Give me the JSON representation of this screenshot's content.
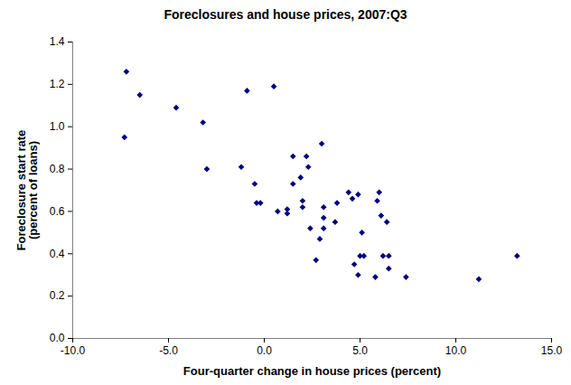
{
  "chart_data": {
    "type": "scatter",
    "title": "Foreclosures and house prices, 2007:Q3",
    "x_label": "Four-quarter change in house prices (percent)",
    "y_label": "Foreclosure start rate\n(percent of loans)",
    "color": "#000080",
    "marker": "diamond",
    "grid": false,
    "x": [
      -7.2,
      -7.3,
      -6.5,
      -4.6,
      -3.2,
      -3.0,
      -1.2,
      -0.9,
      -0.5,
      -0.4,
      -0.2,
      0.5,
      0.7,
      1.2,
      1.2,
      1.5,
      1.5,
      1.9,
      2.0,
      2.0,
      2.2,
      2.3,
      2.4,
      2.7,
      2.9,
      3.0,
      3.1,
      3.1,
      3.1,
      3.7,
      3.8,
      4.4,
      4.6,
      4.7,
      4.9,
      4.9,
      5.0,
      5.1,
      5.2,
      5.8,
      5.9,
      6.0,
      6.1,
      6.2,
      6.4,
      6.5,
      6.5,
      7.4,
      11.2,
      13.2
    ],
    "values": [
      1.26,
      0.95,
      1.15,
      1.09,
      1.02,
      0.8,
      0.81,
      1.17,
      0.73,
      0.64,
      0.64,
      1.19,
      0.6,
      0.61,
      0.59,
      0.73,
      0.86,
      0.76,
      0.62,
      0.65,
      0.86,
      0.81,
      0.52,
      0.37,
      0.47,
      0.92,
      0.57,
      0.62,
      0.52,
      0.55,
      0.64,
      0.69,
      0.66,
      0.35,
      0.3,
      0.68,
      0.39,
      0.5,
      0.39,
      0.29,
      0.65,
      0.69,
      0.58,
      0.39,
      0.55,
      0.39,
      0.33,
      0.29,
      0.28,
      0.39
    ],
    "xlim": [
      -10,
      15
    ],
    "xticks": [
      {
        "value": -10,
        "label": "-10.0"
      },
      {
        "value": -5,
        "label": "-5.0"
      },
      {
        "value": 0,
        "label": "0.0"
      },
      {
        "value": 5,
        "label": "5.0"
      },
      {
        "value": 10,
        "label": "10.0"
      },
      {
        "value": 15,
        "label": "15.0"
      }
    ],
    "ylim": [
      0,
      1.4
    ],
    "yticks": [
      {
        "value": 0,
        "label": "0.0"
      },
      {
        "value": 0.2,
        "label": "0.2"
      },
      {
        "value": 0.4,
        "label": "0.4"
      },
      {
        "value": 0.6,
        "label": "0.6"
      },
      {
        "value": 0.8,
        "label": "0.8"
      },
      {
        "value": 1.0,
        "label": "1.0"
      },
      {
        "value": 1.2,
        "label": "1.2"
      },
      {
        "value": 1.4,
        "label": "1.4"
      }
    ]
  }
}
